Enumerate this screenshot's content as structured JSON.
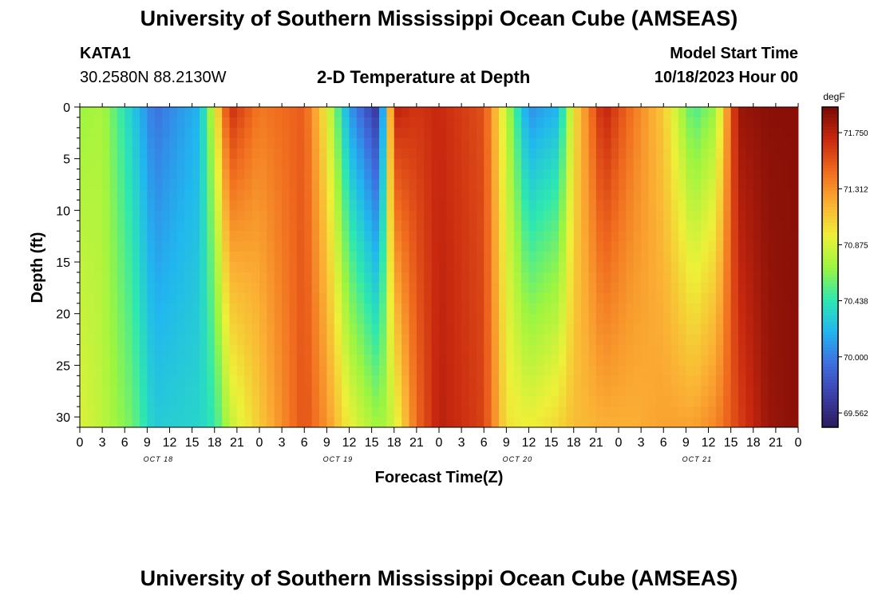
{
  "header": {
    "title": "University of Southern Mississippi Ocean Cube (AMSEAS)",
    "station": "KATA1",
    "coords": "30.2580N  88.2130W",
    "subtitle": "2-D Temperature at Depth",
    "model_start_label": "Model Start Time",
    "model_start_value": "10/18/2023 Hour 00"
  },
  "footer": {
    "title": "University of Southern Mississippi Ocean Cube (AMSEAS)"
  },
  "chart_data": {
    "type": "heatmap",
    "title": "2-D Temperature at Depth",
    "xlabel": "Forecast Time(Z)",
    "ylabel": "Depth (ft)",
    "x_range_hours": [
      0,
      96
    ],
    "x_step_hours": 1,
    "x_tick_step_hours": 3,
    "x_tick_labels": [
      "0",
      "3",
      "6",
      "9",
      "12",
      "15",
      "18",
      "21"
    ],
    "day_labels": [
      "OCT 18",
      "OCT 19",
      "OCT 20",
      "OCT 21"
    ],
    "ylim": [
      0,
      31
    ],
    "y_reversed": true,
    "y_ticks": [
      0,
      5,
      10,
      15,
      20,
      25,
      30
    ],
    "depth_levels_ft": [
      0,
      31
    ],
    "colorbar": {
      "unit": "degF",
      "range": [
        69.45,
        71.95
      ],
      "tick_values": [
        69.562,
        70.0,
        70.438,
        70.875,
        71.312,
        71.75
      ],
      "tick_labels": [
        "69.562",
        "70.000",
        "70.438",
        "70.875",
        "71.312",
        "71.750"
      ],
      "colors": [
        "#2b1a5a",
        "#3b3fa8",
        "#3f6ee0",
        "#21b6f0",
        "#2ee8b0",
        "#9cf540",
        "#eef038",
        "#fbb034",
        "#f06a1e",
        "#c8280f",
        "#7a0a05"
      ]
    },
    "profile_columns_hours": [
      0,
      3,
      7,
      10,
      16,
      18,
      20,
      24,
      30,
      33,
      36,
      40,
      42,
      45,
      48,
      54,
      57,
      60,
      64,
      66,
      70,
      74,
      78,
      82,
      85,
      88,
      92,
      96
    ],
    "surface_values_degF": [
      70.7,
      70.75,
      70.3,
      69.95,
      70.2,
      70.9,
      71.7,
      71.4,
      71.5,
      70.95,
      70.1,
      69.6,
      71.75,
      71.65,
      71.7,
      71.55,
      70.8,
      70.05,
      70.2,
      71.0,
      71.75,
      71.4,
      71.1,
      70.5,
      70.7,
      71.85,
      71.9,
      71.9
    ],
    "bottom_values_degF": [
      70.9,
      70.8,
      70.6,
      70.3,
      70.35,
      70.45,
      70.8,
      71.1,
      71.55,
      71.3,
      70.95,
      70.7,
      70.85,
      71.45,
      71.75,
      71.6,
      71.0,
      70.95,
      71.05,
      71.15,
      71.2,
      71.2,
      71.25,
      71.25,
      71.35,
      71.6,
      71.85,
      71.9
    ]
  }
}
